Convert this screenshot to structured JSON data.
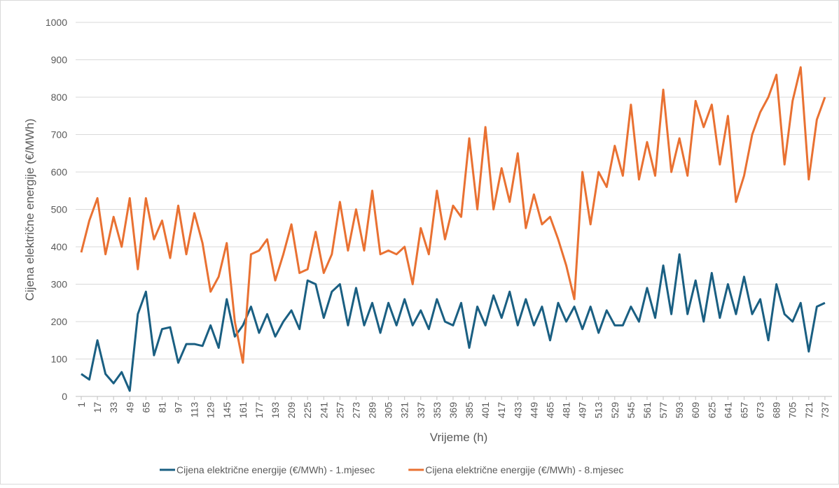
{
  "chart_data": {
    "type": "line",
    "x_label": "Vrijeme (h)",
    "y_label": "Cijena električne energije (€/MWh)",
    "x": [
      1,
      9,
      17,
      25,
      33,
      41,
      49,
      57,
      65,
      73,
      81,
      89,
      97,
      105,
      113,
      121,
      129,
      137,
      145,
      153,
      161,
      169,
      177,
      185,
      193,
      201,
      209,
      217,
      225,
      233,
      241,
      249,
      257,
      265,
      273,
      281,
      289,
      297,
      305,
      313,
      321,
      329,
      337,
      345,
      353,
      361,
      369,
      377,
      385,
      393,
      401,
      409,
      417,
      425,
      433,
      441,
      449,
      457,
      465,
      473,
      481,
      489,
      497,
      505,
      513,
      521,
      529,
      537,
      545,
      553,
      561,
      569,
      577,
      585,
      593,
      601,
      609,
      617,
      625,
      633,
      641,
      649,
      657,
      665,
      673,
      681,
      689,
      697,
      705,
      713,
      721,
      729,
      737
    ],
    "xlim": [
      1,
      744
    ],
    "xticks": [
      1,
      17,
      33,
      49,
      65,
      81,
      97,
      113,
      129,
      145,
      161,
      177,
      193,
      209,
      225,
      241,
      257,
      273,
      289,
      305,
      321,
      337,
      353,
      369,
      385,
      401,
      417,
      433,
      449,
      465,
      481,
      497,
      513,
      529,
      545,
      561,
      577,
      593,
      609,
      625,
      641,
      657,
      673,
      689,
      705,
      721,
      737
    ],
    "ylim": [
      0,
      1000
    ],
    "yticks": [
      0,
      100,
      200,
      300,
      400,
      500,
      600,
      700,
      800,
      900,
      1000
    ],
    "grid": true,
    "legend": "bottom",
    "series": [
      {
        "name": "Cijena električne energije (€/MWh) - 1.mjesec",
        "color": "#1a5f82",
        "values": [
          60,
          45,
          150,
          60,
          35,
          65,
          15,
          220,
          280,
          110,
          180,
          185,
          90,
          140,
          140,
          135,
          190,
          130,
          260,
          160,
          190,
          240,
          170,
          220,
          160,
          200,
          230,
          180,
          310,
          300,
          210,
          280,
          300,
          190,
          290,
          190,
          250,
          170,
          250,
          190,
          260,
          190,
          230,
          180,
          260,
          200,
          190,
          250,
          130,
          240,
          190,
          270,
          210,
          280,
          190,
          260,
          190,
          240,
          150,
          250,
          200,
          240,
          180,
          240,
          170,
          230,
          190,
          190,
          240,
          200,
          290,
          210,
          350,
          220,
          380,
          220,
          310,
          200,
          330,
          210,
          300,
          220,
          320,
          220,
          260,
          150,
          300,
          220,
          200,
          250,
          120,
          240,
          250
        ]
      },
      {
        "name": "Cijena električne energije (€/MWh) - 8.mjesec",
        "color": "#e97132",
        "values": [
          385,
          470,
          530,
          380,
          480,
          400,
          530,
          340,
          530,
          420,
          470,
          370,
          510,
          380,
          490,
          410,
          280,
          320,
          410,
          200,
          90,
          380,
          390,
          420,
          310,
          380,
          460,
          330,
          340,
          440,
          330,
          380,
          520,
          390,
          500,
          390,
          550,
          380,
          390,
          380,
          400,
          300,
          450,
          380,
          550,
          420,
          510,
          480,
          690,
          500,
          720,
          500,
          610,
          520,
          650,
          450,
          540,
          460,
          480,
          420,
          350,
          260,
          600,
          460,
          600,
          560,
          670,
          590,
          780,
          580,
          680,
          590,
          820,
          600,
          690,
          590,
          790,
          720,
          780,
          620,
          750,
          520,
          590,
          700,
          760,
          800,
          860,
          620,
          790,
          880,
          580,
          740,
          800
        ]
      }
    ]
  }
}
